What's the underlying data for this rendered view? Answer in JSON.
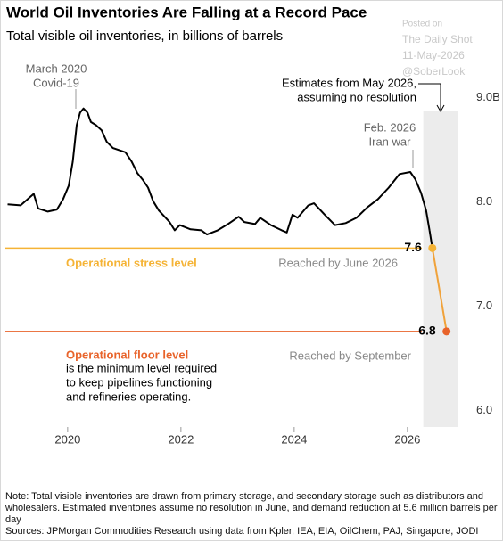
{
  "chart_data": {
    "type": "line",
    "title": "World Oil Inventories Are Falling at a Record Pace",
    "subtitle": "Total visible oil inventories, in billions of barrels",
    "series": [
      {
        "color": "#000000",
        "x": [
          2018.94,
          2019.17,
          2019.4,
          2019.48,
          2019.65,
          2019.81,
          2019.92,
          2020.02,
          2020.09,
          2020.16,
          2020.22,
          2020.28,
          2020.35,
          2020.41,
          2020.5,
          2020.6,
          2020.69,
          2020.8,
          2021.02,
          2021.13,
          2021.23,
          2021.32,
          2021.42,
          2021.51,
          2021.61,
          2021.8,
          2021.89,
          2021.98,
          2022.17,
          2022.36,
          2022.46,
          2022.65,
          2022.83,
          2023.02,
          2023.12,
          2023.31,
          2023.4,
          2023.59,
          2023.78,
          2023.87,
          2023.97,
          2024.06,
          2024.25,
          2024.35,
          2024.54,
          2024.72,
          2024.91,
          2025.1,
          2025.29,
          2025.48,
          2025.67,
          2025.86,
          2026.05,
          2026.14,
          2026.24,
          2026.33,
          2026.39
        ],
        "values": [
          8.02,
          8.01,
          8.12,
          7.98,
          7.95,
          7.97,
          8.07,
          8.2,
          8.43,
          8.78,
          8.9,
          8.94,
          8.9,
          8.81,
          8.78,
          8.73,
          8.62,
          8.56,
          8.52,
          8.43,
          8.32,
          8.26,
          8.18,
          8.05,
          7.96,
          7.85,
          7.77,
          7.82,
          7.78,
          7.77,
          7.73,
          7.77,
          7.83,
          7.9,
          7.85,
          7.83,
          7.89,
          7.82,
          7.77,
          7.75,
          7.92,
          7.89,
          8.01,
          8.03,
          7.92,
          7.82,
          7.84,
          7.89,
          7.99,
          8.07,
          8.18,
          8.31,
          8.33,
          8.26,
          8.13,
          7.96,
          7.77
        ]
      },
      {
        "color": "#f0a23a",
        "point_colors": [
          "#f5b335",
          "#e8632a"
        ],
        "x": [
          2026.44,
          2026.69
        ],
        "values": [
          7.6,
          6.8
        ]
      }
    ],
    "xlim": [
      2018.9,
      2026.9
    ],
    "xticks": [
      2020,
      2022,
      2024,
      2026
    ],
    "ylim": [
      5.9,
      9.1
    ],
    "yticks": [
      {
        "value": 9,
        "label": "9.0B"
      },
      {
        "value": 8,
        "label": "8.0"
      },
      {
        "value": 7,
        "label": "7.0"
      },
      {
        "value": 6,
        "label": "6.0"
      }
    ],
    "grid": false,
    "shaded_xrange": [
      2026.28,
      2026.9
    ],
    "reference_lines": [
      {
        "value": 7.6,
        "color": "#f5b335",
        "label": "Operational stress level",
        "note": "Reached by June 2026"
      },
      {
        "value": 6.8,
        "color": "#e8632a",
        "label": "Operational floor level",
        "description": [
          "is the minimum level required",
          "to keep pipelines functioning",
          "and refineries operating."
        ],
        "note": "Reached by September"
      }
    ],
    "annotations": [
      {
        "lines": [
          "March 2020",
          "Covid-19"
        ]
      },
      {
        "lines": [
          "Feb. 2026",
          "Iran war"
        ]
      },
      {
        "lines": [
          "Estimates from May 2026,",
          "assuming no resolution"
        ]
      }
    ],
    "watermark": [
      "Posted on",
      "The Daily Shot",
      "11-May-2026",
      "@SoberLook"
    ],
    "note": "Note: Total visible inventories are drawn from primary storage, and secondary storage such as distributors and wholesalers. Estimated inventories assume no resolution in June, and demand reduction at 5.6 million barrels per day",
    "sources": "Sources: JPMorgan Commodities Research using data from Kpler, IEA, EIA, OilChem, PAJ, Singapore, JODI"
  }
}
